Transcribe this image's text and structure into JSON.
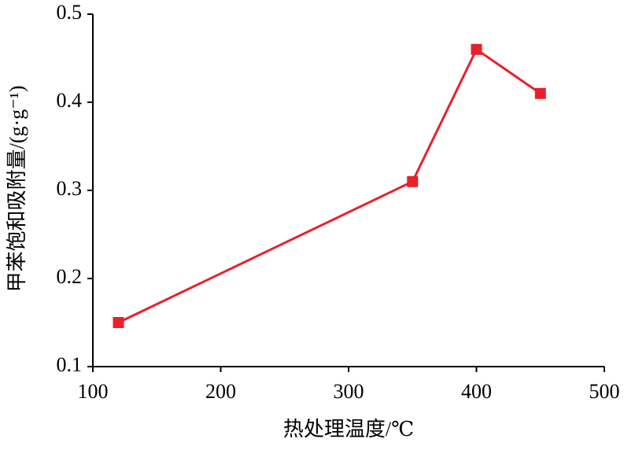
{
  "chart_data": {
    "type": "line",
    "x_label": "热处理温度/℃",
    "y_label": "甲苯饱和吸附量/(g·g⁻¹)",
    "x": [
      120,
      350,
      400,
      450
    ],
    "values": [
      0.15,
      0.31,
      0.46,
      0.41
    ],
    "color": "#e8202a",
    "xlim": [
      100,
      500
    ],
    "xticks": [
      100,
      200,
      300,
      400,
      500
    ],
    "ylim": [
      0.1,
      0.5
    ],
    "yticks": [
      0.1,
      0.2,
      0.3,
      0.4,
      0.5
    ],
    "grid": false
  }
}
